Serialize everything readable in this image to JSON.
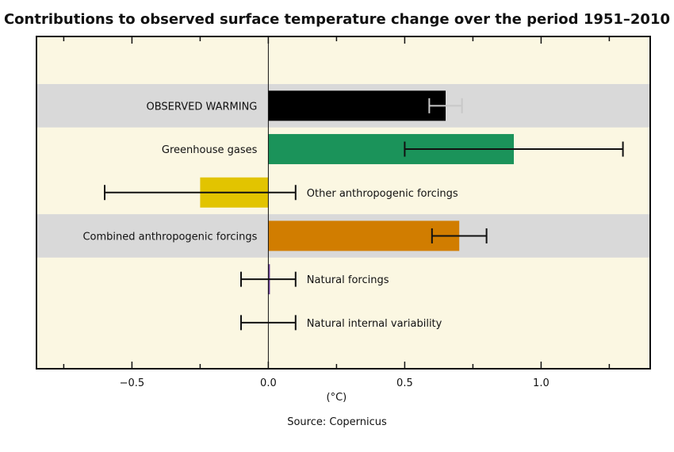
{
  "source_note": "Source: Copernicus",
  "colors": {
    "plot_background": "#fbf7e2",
    "band": "#d9d9d9",
    "axis": "#111111",
    "error_bar": "#111111"
  },
  "chart_data": {
    "type": "bar",
    "orientation": "horizontal",
    "title": "Contributions to observed surface temperature change over the period 1951–2010",
    "xlabel": "(°C)",
    "xlim": [
      -0.85,
      1.4
    ],
    "xticks": [
      -0.5,
      0.0,
      0.5,
      1.0
    ],
    "xtick_labels": [
      "−0.5",
      "0.0",
      "0.5",
      "1.0"
    ],
    "grid": false,
    "categories": [
      "OBSERVED WARMING",
      "Greenhouse gases",
      "Other anthropogenic forcings",
      "Combined anthropogenic forcings",
      "Natural forcings",
      "Natural internal variability"
    ],
    "values": [
      0.65,
      0.9,
      -0.25,
      0.7,
      0.0,
      null
    ],
    "error_low": [
      0.59,
      0.5,
      -0.6,
      0.6,
      -0.1,
      -0.1
    ],
    "error_high": [
      0.71,
      1.3,
      0.1,
      0.8,
      0.1,
      0.1
    ],
    "bar_colors": [
      "#000000",
      "#1b935a",
      "#e2c400",
      "#d17d00",
      "#6b3f99",
      null
    ],
    "error_colors": [
      "#c8c8c8",
      "#111111",
      "#111111",
      "#111111",
      "#111111",
      "#111111"
    ],
    "label_side": [
      "left",
      "left",
      "right",
      "left",
      "right",
      "right"
    ],
    "shaded_band": [
      true,
      false,
      false,
      true,
      false,
      false
    ]
  }
}
